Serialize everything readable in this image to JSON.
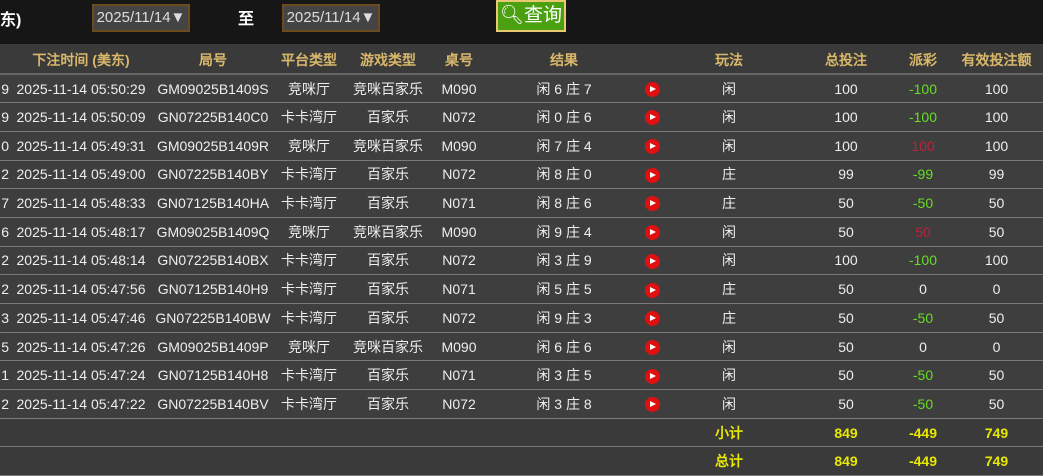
{
  "filter": {
    "label_tz": "东)",
    "start_date": "2025/11/14▼",
    "to_label": "至",
    "end_date": "2025/11/14▼",
    "query_button": "查询"
  },
  "colors": {
    "win": "#66dd22",
    "loss": "#c0203a",
    "header": "#d9b86a",
    "total": "#e8e800"
  },
  "columns": [
    "",
    "下注时间 (美东)",
    "局号",
    "平台类型",
    "游戏类型",
    "桌号",
    "结果",
    "",
    "玩法",
    "总投注",
    "派彩",
    "有效投注额"
  ],
  "rows": [
    {
      "c0": "9",
      "time": "2025-11-14 05:50:29",
      "round": "GM09025B1409S",
      "platform": "竞咪厅",
      "game": "竞咪百家乐",
      "table": "M090",
      "result": "闲 6 庄 7",
      "play": "闲",
      "bet": "100",
      "payout": "-100",
      "payout_type": "win",
      "valid": "100"
    },
    {
      "c0": "9",
      "time": "2025-11-14 05:50:09",
      "round": "GN07225B140C0",
      "platform": "卡卡湾厅",
      "game": "百家乐",
      "table": "N072",
      "result": "闲 0 庄 6",
      "play": "闲",
      "bet": "100",
      "payout": "-100",
      "payout_type": "win",
      "valid": "100"
    },
    {
      "c0": "0",
      "time": "2025-11-14 05:49:31",
      "round": "GM09025B1409R",
      "platform": "竞咪厅",
      "game": "竞咪百家乐",
      "table": "M090",
      "result": "闲 7 庄 4",
      "play": "闲",
      "bet": "100",
      "payout": "100",
      "payout_type": "loss",
      "valid": "100"
    },
    {
      "c0": "2",
      "time": "2025-11-14 05:49:00",
      "round": "GN07225B140BY",
      "platform": "卡卡湾厅",
      "game": "百家乐",
      "table": "N072",
      "result": "闲 8 庄 0",
      "play": "庄",
      "bet": "99",
      "payout": "-99",
      "payout_type": "win",
      "valid": "99"
    },
    {
      "c0": "7",
      "time": "2025-11-14 05:48:33",
      "round": "GN07125B140HA",
      "platform": "卡卡湾厅",
      "game": "百家乐",
      "table": "N071",
      "result": "闲 8 庄 6",
      "play": "庄",
      "bet": "50",
      "payout": "-50",
      "payout_type": "win",
      "valid": "50"
    },
    {
      "c0": "6",
      "time": "2025-11-14 05:48:17",
      "round": "GM09025B1409Q",
      "platform": "竞咪厅",
      "game": "竞咪百家乐",
      "table": "M090",
      "result": "闲 9 庄 4",
      "play": "闲",
      "bet": "50",
      "payout": "50",
      "payout_type": "loss",
      "valid": "50"
    },
    {
      "c0": "2",
      "time": "2025-11-14 05:48:14",
      "round": "GN07225B140BX",
      "platform": "卡卡湾厅",
      "game": "百家乐",
      "table": "N072",
      "result": "闲 3 庄 9",
      "play": "闲",
      "bet": "100",
      "payout": "-100",
      "payout_type": "win",
      "valid": "100"
    },
    {
      "c0": "2",
      "time": "2025-11-14 05:47:56",
      "round": "GN07125B140H9",
      "platform": "卡卡湾厅",
      "game": "百家乐",
      "table": "N071",
      "result": "闲 5 庄 5",
      "play": "庄",
      "bet": "50",
      "payout": "0",
      "payout_type": "neutral",
      "valid": "0"
    },
    {
      "c0": "3",
      "time": "2025-11-14 05:47:46",
      "round": "GN07225B140BW",
      "platform": "卡卡湾厅",
      "game": "百家乐",
      "table": "N072",
      "result": "闲 9 庄 3",
      "play": "庄",
      "bet": "50",
      "payout": "-50",
      "payout_type": "win",
      "valid": "50"
    },
    {
      "c0": "5",
      "time": "2025-11-14 05:47:26",
      "round": "GM09025B1409P",
      "platform": "竞咪厅",
      "game": "竞咪百家乐",
      "table": "M090",
      "result": "闲 6 庄 6",
      "play": "闲",
      "bet": "50",
      "payout": "0",
      "payout_type": "neutral",
      "valid": "0"
    },
    {
      "c0": "1",
      "time": "2025-11-14 05:47:24",
      "round": "GN07125B140H8",
      "platform": "卡卡湾厅",
      "game": "百家乐",
      "table": "N071",
      "result": "闲 3 庄 5",
      "play": "闲",
      "bet": "50",
      "payout": "-50",
      "payout_type": "win",
      "valid": "50"
    },
    {
      "c0": "2",
      "time": "2025-11-14 05:47:22",
      "round": "GN07225B140BV",
      "platform": "卡卡湾厅",
      "game": "百家乐",
      "table": "N072",
      "result": "闲 3 庄 8",
      "play": "闲",
      "bet": "50",
      "payout": "-50",
      "payout_type": "win",
      "valid": "50"
    }
  ],
  "subtotal": {
    "label": "小计",
    "bet": "849",
    "payout": "-449",
    "valid": "749"
  },
  "total": {
    "label": "总计",
    "bet": "849",
    "payout": "-449",
    "valid": "749"
  }
}
